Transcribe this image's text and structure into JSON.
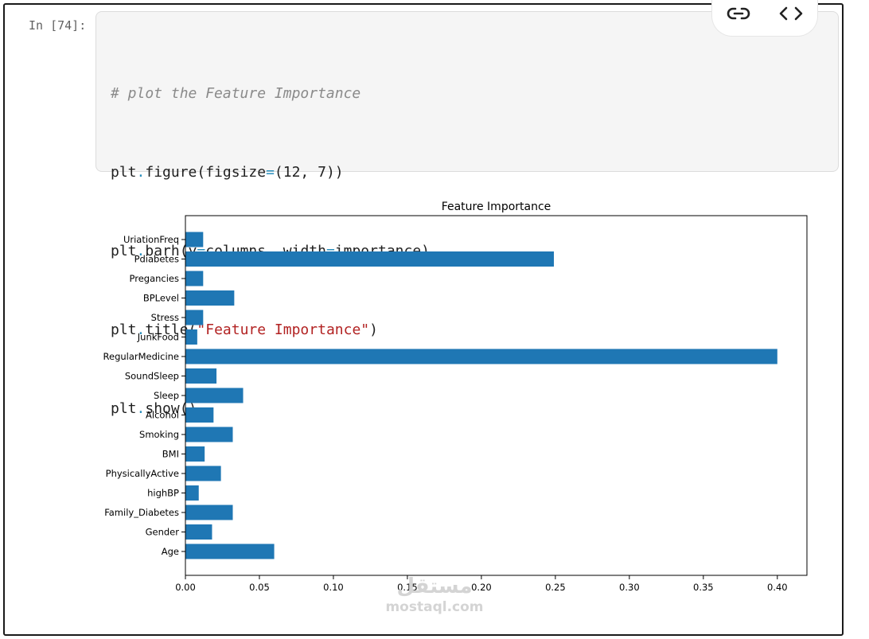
{
  "cell": {
    "prompt": "In [74]:",
    "code": {
      "line1": "# plot the Feature Importance",
      "line2": {
        "a": "plt",
        "b": ".",
        "c": "figure(figsize",
        "d": "=",
        "e": "(12, 7))"
      },
      "line3": {
        "a": "plt",
        "b": ".",
        "c": "barh(y",
        "d": "=",
        "e": "columns, width",
        "f": "=",
        "g": "importance)"
      },
      "line4": {
        "a": "plt",
        "b": ".",
        "c": "title(",
        "d": "\"Feature Importance\"",
        "e": ")"
      },
      "line5": {
        "a": "plt",
        "b": ".",
        "c": "show()"
      }
    }
  },
  "toolbar": {
    "link_icon": "link-icon",
    "code_icon": "code-brackets-icon"
  },
  "chart_data": {
    "type": "bar",
    "orientation": "horizontal",
    "title": "Feature Importance",
    "xlabel": "",
    "ylabel": "",
    "categories": [
      "Age",
      "Gender",
      "Family_Diabetes",
      "highBP",
      "PhysicallyActive",
      "BMI",
      "Smoking",
      "Alcohol",
      "Sleep",
      "SoundSleep",
      "RegularMedicine",
      "JunkFood",
      "Stress",
      "BPLevel",
      "Pregancies",
      "Pdiabetes",
      "UriationFreq"
    ],
    "values": [
      0.06,
      0.018,
      0.032,
      0.009,
      0.024,
      0.013,
      0.032,
      0.019,
      0.039,
      0.021,
      0.4,
      0.008,
      0.012,
      0.033,
      0.012,
      0.249,
      0.012
    ],
    "xlim": [
      0.0,
      0.42
    ],
    "xticks": [
      "0.00",
      "0.05",
      "0.10",
      "0.15",
      "0.20",
      "0.25",
      "0.30",
      "0.35",
      "0.40"
    ],
    "bar_color": "#1f77b4",
    "grid": false
  },
  "watermark": {
    "logo": "مستقل",
    "url": "mostaql.com"
  }
}
